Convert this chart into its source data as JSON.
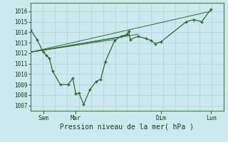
{
  "xlabel": "Pression niveau de la mer( hPa )",
  "bg_color": "#cce9f0",
  "grid_color": "#b0d8df",
  "line_color": "#2d6a2d",
  "ylim": [
    1006.5,
    1016.8
  ],
  "yticks": [
    1007,
    1008,
    1009,
    1010,
    1011,
    1012,
    1013,
    1014,
    1015,
    1016
  ],
  "x_tick_labels": [
    "Sam",
    "Mar",
    "Dim",
    "Lun"
  ],
  "x_tick_positions": [
    16,
    58,
    168,
    232
  ],
  "series_x": [
    0,
    8,
    16,
    20,
    24,
    28,
    38,
    48,
    54,
    58,
    62,
    68,
    76,
    84,
    90,
    96,
    108,
    116,
    124,
    126,
    128,
    138,
    148,
    155,
    160,
    168,
    200,
    210,
    220,
    232
  ],
  "series_y": [
    1014.2,
    1013.3,
    1012.1,
    1011.8,
    1011.5,
    1010.3,
    1009.0,
    1009.0,
    1009.6,
    1008.1,
    1008.2,
    1007.1,
    1008.5,
    1009.3,
    1009.5,
    1011.2,
    1013.2,
    1013.6,
    1013.8,
    1014.1,
    1013.3,
    1013.6,
    1013.4,
    1013.2,
    1012.9,
    1013.1,
    1015.0,
    1015.2,
    1015.0,
    1016.2
  ],
  "trend_lines": [
    [
      [
        0,
        232
      ],
      [
        1012.1,
        1016.0
      ]
    ],
    [
      [
        0,
        108
      ],
      [
        1012.1,
        1013.3
      ]
    ],
    [
      [
        0,
        126
      ],
      [
        1012.1,
        1013.7
      ]
    ],
    [
      [
        0,
        138
      ],
      [
        1012.1,
        1013.8
      ]
    ]
  ],
  "xlim": [
    0,
    248
  ]
}
